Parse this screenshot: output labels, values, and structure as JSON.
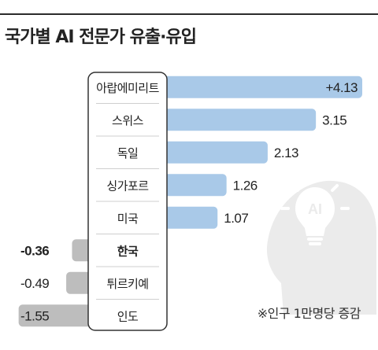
{
  "chart_data": {
    "type": "bar",
    "orientation": "horizontal",
    "title": "국가별 AI 전문가 유출·유입",
    "note": "※인구 1만명당 증감",
    "categories": [
      "아랍에미리트",
      "스위스",
      "독일",
      "싱가포르",
      "미국",
      "한국",
      "튀르키예",
      "인도"
    ],
    "values": [
      4.13,
      3.15,
      2.13,
      1.26,
      1.07,
      -0.36,
      -0.49,
      -1.55
    ],
    "value_labels": [
      "+4.13",
      "3.15",
      "2.13",
      "1.26",
      "1.07",
      "-0.36",
      "-0.49",
      "-1.55"
    ],
    "highlight": "한국",
    "icon": "head-lightbulb-ai-icon",
    "icon_text": "AI",
    "colors": {
      "positive_bar": "#a9c9e8",
      "negative_bar": "#bdbdbd",
      "label_box": "#ffffff",
      "icon": "#ebebeb"
    }
  }
}
